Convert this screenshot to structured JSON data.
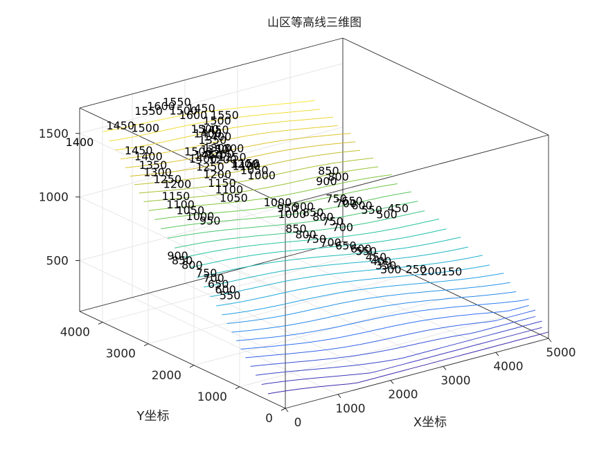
{
  "chart_data": {
    "type": "contour3",
    "title": "山区等高线三维图",
    "xlabel": "X坐标",
    "ylabel": "Y坐标",
    "zlabel": "",
    "xlim": [
      0,
      5000
    ],
    "ylim": [
      0,
      4500
    ],
    "zlim": [
      100,
      1700
    ],
    "xticks": [
      "0",
      "1000",
      "2000",
      "3000",
      "4000",
      "5000"
    ],
    "yticks": [
      "0",
      "1000",
      "2000",
      "3000",
      "4000"
    ],
    "zticks": [
      "500",
      "1000",
      "1500"
    ],
    "grid": true,
    "colormap": [
      "#3e26a8",
      "#2f6df3",
      "#1fa6e0",
      "#1cc3a4",
      "#72c73f",
      "#d9bb2a",
      "#f9e53a"
    ],
    "contour_levels": [
      150,
      200,
      250,
      300,
      350,
      400,
      450,
      500,
      550,
      600,
      650,
      700,
      750,
      800,
      850,
      900,
      950,
      1000,
      1050,
      1100,
      1150,
      1200,
      1250,
      1300,
      1350,
      1400,
      1450,
      1500,
      1550,
      1600
    ],
    "contour_labels": [
      {
        "text": "1550",
        "x": 1800,
        "y": 3400,
        "z": 1600
      },
      {
        "text": "1500",
        "x": 1700,
        "y": 3450,
        "z": 1560
      },
      {
        "text": "1450",
        "x": 1700,
        "y": 3500,
        "z": 1480
      },
      {
        "text": "1400",
        "x": 1650,
        "y": 3600,
        "z": 1440
      },
      {
        "text": "1350",
        "x": 1700,
        "y": 3550,
        "z": 1390
      },
      {
        "text": "1300",
        "x": 1750,
        "y": 3500,
        "z": 1330
      },
      {
        "text": "1250",
        "x": 1800,
        "y": 3500,
        "z": 1280
      },
      {
        "text": "1200",
        "x": 1850,
        "y": 3500,
        "z": 1230
      },
      {
        "text": "1150",
        "x": 2200,
        "y": 3400,
        "z": 1180
      },
      {
        "text": "1100",
        "x": 2300,
        "y": 3500,
        "z": 1130
      },
      {
        "text": "1050",
        "x": 2450,
        "y": 3500,
        "z": 1080
      },
      {
        "text": "1000",
        "x": 2500,
        "y": 3400,
        "z": 1050
      },
      {
        "text": "1450",
        "x": 600,
        "y": 4300,
        "z": 1500
      },
      {
        "text": "1400",
        "x": 0,
        "y": 4500,
        "z": 1400
      },
      {
        "text": "1500",
        "x": 900,
        "y": 4100,
        "z": 1480
      },
      {
        "text": "1600",
        "x": 1200,
        "y": 4100,
        "z": 1620
      },
      {
        "text": "1550",
        "x": 1500,
        "y": 4100,
        "z": 1620
      },
      {
        "text": "1550",
        "x": 1050,
        "y": 4200,
        "z": 1580
      },
      {
        "text": "1500",
        "x": 1450,
        "y": 3900,
        "z": 1590
      },
      {
        "text": "1450",
        "x": 1700,
        "y": 3800,
        "z": 1600
      },
      {
        "text": "1600",
        "x": 1550,
        "y": 3800,
        "z": 1560
      },
      {
        "text": "1500",
        "x": 1600,
        "y": 3600,
        "z": 1480
      },
      {
        "text": "1400",
        "x": 1750,
        "y": 3500,
        "z": 1420
      },
      {
        "text": "1350",
        "x": 1650,
        "y": 3450,
        "z": 1340
      },
      {
        "text": "1300",
        "x": 1900,
        "y": 3400,
        "z": 1330
      },
      {
        "text": "1250",
        "x": 1900,
        "y": 3350,
        "z": 1270
      },
      {
        "text": "1200",
        "x": 2000,
        "y": 3200,
        "z": 1230
      },
      {
        "text": "1450",
        "x": 600,
        "y": 3900,
        "z": 1370
      },
      {
        "text": "1400",
        "x": 700,
        "y": 3800,
        "z": 1330
      },
      {
        "text": "1350",
        "x": 700,
        "y": 3700,
        "z": 1280
      },
      {
        "text": "1300",
        "x": 700,
        "y": 3600,
        "z": 1240
      },
      {
        "text": "1250",
        "x": 800,
        "y": 3500,
        "z": 1190
      },
      {
        "text": "1200",
        "x": 900,
        "y": 3400,
        "z": 1160
      },
      {
        "text": "1150",
        "x": 700,
        "y": 3200,
        "z": 1120
      },
      {
        "text": "1100",
        "x": 700,
        "y": 3100,
        "z": 1070
      },
      {
        "text": "1050",
        "x": 800,
        "y": 3000,
        "z": 1030
      },
      {
        "text": "1000",
        "x": 900,
        "y": 2900,
        "z": 990
      },
      {
        "text": "950",
        "x": 1000,
        "y": 2800,
        "z": 960
      },
      {
        "text": "1500",
        "x": 1300,
        "y": 3400,
        "z": 1370
      },
      {
        "text": "1400",
        "x": 1300,
        "y": 3300,
        "z": 1330
      },
      {
        "text": "1450",
        "x": 1400,
        "y": 3300,
        "z": 1350
      },
      {
        "text": "1250",
        "x": 1350,
        "y": 3200,
        "z": 1280
      },
      {
        "text": "1200",
        "x": 1400,
        "y": 3100,
        "z": 1230
      },
      {
        "text": "1150",
        "x": 1400,
        "y": 3000,
        "z": 1180
      },
      {
        "text": "1100",
        "x": 1450,
        "y": 2900,
        "z": 1140
      },
      {
        "text": "1050",
        "x": 1450,
        "y": 2800,
        "z": 1090
      },
      {
        "text": "1000",
        "x": 2200,
        "y": 2700,
        "z": 990
      },
      {
        "text": "950",
        "x": 2300,
        "y": 2600,
        "z": 950
      },
      {
        "text": "900",
        "x": 2600,
        "y": 2600,
        "z": 930
      },
      {
        "text": "850",
        "x": 2700,
        "y": 2500,
        "z": 890
      },
      {
        "text": "800",
        "x": 2800,
        "y": 2400,
        "z": 860
      },
      {
        "text": "750",
        "x": 2900,
        "y": 2300,
        "z": 830
      },
      {
        "text": "700",
        "x": 3000,
        "y": 2200,
        "z": 790
      },
      {
        "text": "1000",
        "x": 2300,
        "y": 2500,
        "z": 920
      },
      {
        "text": "900",
        "x": 3300,
        "y": 2900,
        "z": 1000
      },
      {
        "text": "850",
        "x": 3600,
        "y": 3200,
        "z": 1000
      },
      {
        "text": "800",
        "x": 3700,
        "y": 3100,
        "z": 960
      },
      {
        "text": "750",
        "x": 3400,
        "y": 2800,
        "z": 870
      },
      {
        "text": "700",
        "x": 3500,
        "y": 2700,
        "z": 840
      },
      {
        "text": "650",
        "x": 3700,
        "y": 2800,
        "z": 820
      },
      {
        "text": "600",
        "x": 3800,
        "y": 2700,
        "z": 790
      },
      {
        "text": "550",
        "x": 3900,
        "y": 2600,
        "z": 760
      },
      {
        "text": "500",
        "x": 4100,
        "y": 2500,
        "z": 720
      },
      {
        "text": "450",
        "x": 4400,
        "y": 2600,
        "z": 720
      },
      {
        "text": "900",
        "x": 300,
        "y": 2700,
        "z": 780
      },
      {
        "text": "850",
        "x": 300,
        "y": 2600,
        "z": 760
      },
      {
        "text": "800",
        "x": 400,
        "y": 2500,
        "z": 730
      },
      {
        "text": "750",
        "x": 500,
        "y": 2300,
        "z": 690
      },
      {
        "text": "700",
        "x": 550,
        "y": 2200,
        "z": 660
      },
      {
        "text": "650",
        "x": 550,
        "y": 2100,
        "z": 630
      },
      {
        "text": "600",
        "x": 600,
        "y": 2000,
        "z": 600
      },
      {
        "text": "550",
        "x": 600,
        "y": 1900,
        "z": 570
      },
      {
        "text": "850",
        "x": 2200,
        "y": 2300,
        "z": 850
      },
      {
        "text": "800",
        "x": 2300,
        "y": 2200,
        "z": 810
      },
      {
        "text": "750",
        "x": 2400,
        "y": 2100,
        "z": 780
      },
      {
        "text": "700",
        "x": 2600,
        "y": 2000,
        "z": 750
      },
      {
        "text": "650",
        "x": 2800,
        "y": 1900,
        "z": 720
      },
      {
        "text": "600",
        "x": 3000,
        "y": 1800,
        "z": 690
      },
      {
        "text": "550",
        "x": 3100,
        "y": 1800,
        "z": 660
      },
      {
        "text": "450",
        "x": 3200,
        "y": 1700,
        "z": 620
      },
      {
        "text": "400",
        "x": 3250,
        "y": 1650,
        "z": 590
      },
      {
        "text": "350",
        "x": 3300,
        "y": 1600,
        "z": 560
      },
      {
        "text": "300",
        "x": 3350,
        "y": 1550,
        "z": 530
      },
      {
        "text": "250",
        "x": 3700,
        "y": 1400,
        "z": 520
      },
      {
        "text": "200",
        "x": 3900,
        "y": 1300,
        "z": 500
      },
      {
        "text": "150",
        "x": 4200,
        "y": 1200,
        "z": 480
      }
    ]
  }
}
